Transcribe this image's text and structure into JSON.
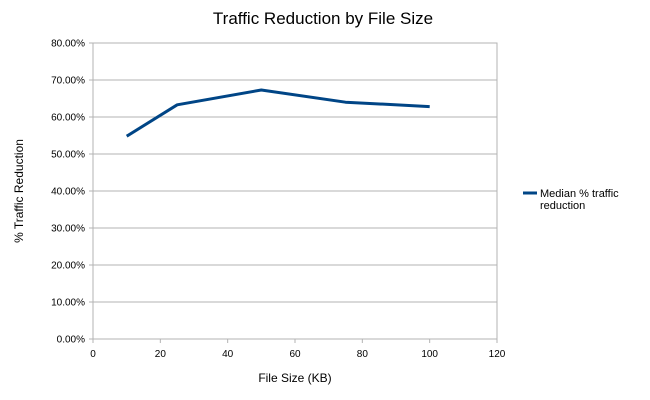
{
  "chart_data": {
    "type": "line",
    "title": "Traffic Reduction by File Size",
    "xlabel": "File Size (KB)",
    "ylabel": "% Traffic Reduction",
    "xlim": [
      0,
      120
    ],
    "ylim": [
      0,
      0.8
    ],
    "x_ticks": [
      0,
      20,
      40,
      60,
      80,
      100,
      120
    ],
    "x_tick_labels": [
      "0",
      "20",
      "40",
      "60",
      "80",
      "100",
      "120"
    ],
    "y_ticks": [
      0,
      0.1,
      0.2,
      0.3,
      0.4,
      0.5,
      0.6,
      0.7,
      0.8
    ],
    "y_tick_labels": [
      "0.00%",
      "10.00%",
      "20.00%",
      "30.00%",
      "40.00%",
      "50.00%",
      "60.00%",
      "70.00%",
      "80.00%"
    ],
    "grid": "horizontal",
    "legend_position": "right",
    "series": [
      {
        "name": "Median % traffic reduction",
        "legend_lines": [
          "Median % traffic",
          "reduction"
        ],
        "color": "#004586",
        "x": [
          10,
          25,
          50,
          75,
          100
        ],
        "y": [
          0.548,
          0.633,
          0.673,
          0.64,
          0.628
        ]
      }
    ]
  }
}
